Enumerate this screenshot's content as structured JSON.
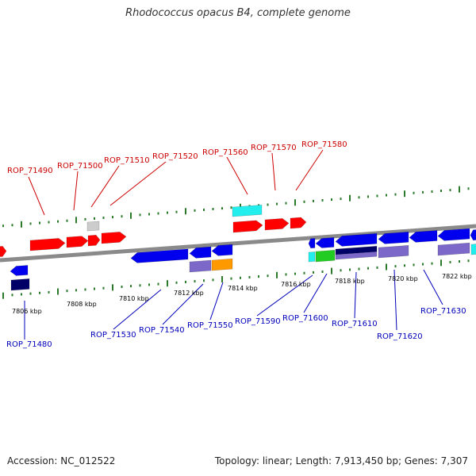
{
  "title": "Rhodococcus opacus B4, complete genome",
  "footer": {
    "accession": "Accession: NC_012522",
    "summary": "Topology: linear; Length: 7,913,450 bp; Genes: 7,307"
  },
  "colors": {
    "backbone": "#8a8a8a",
    "forward_label": "#cc0000",
    "reverse_label": "#0000bb",
    "tick": "#2a7a2a",
    "forward_gene": "#ff0000",
    "reverse_gene": "#0000ee",
    "cyan_gene": "#22eeee",
    "grey_gene": "#cccccc",
    "navy_gene": "#000066",
    "purple_gene": "#7b68c8",
    "orange_gene": "#ff9900",
    "green_gene": "#22cc22"
  },
  "kbp_labels": [
    "7806 kbp",
    "7808 kbp",
    "7810 kbp",
    "7812 kbp",
    "7814 kbp",
    "7816 kbp",
    "7818 kbp",
    "7820 kbp",
    "7822 kbp"
  ],
  "forward_labels": [
    "ROP_71490",
    "ROP_71500",
    "ROP_71510",
    "ROP_71520",
    "ROP_71560",
    "ROP_71570",
    "ROP_71580"
  ],
  "reverse_labels": [
    "ROP_71480",
    "ROP_71530",
    "ROP_71540",
    "ROP_71550",
    "ROP_71590",
    "ROP_71600",
    "ROP_71610",
    "ROP_71620",
    "ROP_71630"
  ]
}
